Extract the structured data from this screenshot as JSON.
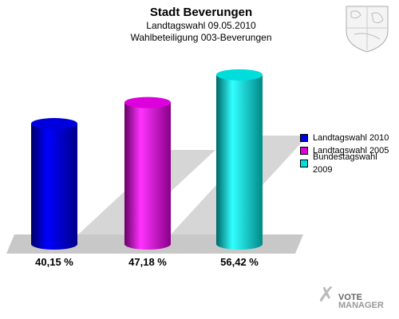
{
  "header": {
    "title": "Stadt Beverungen",
    "subtitle1": "Landtagswahl 09.05.2010",
    "subtitle2": "Wahlbeteiligung 003-Beverungen"
  },
  "chart_data": {
    "type": "bar",
    "title": "Stadt Beverungen",
    "categories": [
      "Landtagswahl 2010",
      "Landtagswahl 2005",
      "Bundestagswahl 2009"
    ],
    "values": [
      40.15,
      47.18,
      56.42
    ],
    "value_labels": [
      "40,15 %",
      "47,18 %",
      "56,42 %"
    ],
    "colors": [
      "#0000dd",
      "#dd00dd",
      "#00dddd"
    ],
    "ylim": [
      0,
      60
    ],
    "grid": false,
    "legend_position": "right"
  },
  "legend": [
    {
      "label": "Landtagswahl 2010",
      "color": "#0000dd"
    },
    {
      "label": "Landtagswahl 2005",
      "color": "#dd00dd"
    },
    {
      "label": "Bundestagswahl 2009",
      "color": "#00dddd"
    }
  ],
  "logo": {
    "line1": "VOTE",
    "line2": "MANAGER"
  },
  "icons": {
    "coat_of_arms": "coat-of-arms-icon",
    "vote_manager": "vote-manager-logo"
  }
}
